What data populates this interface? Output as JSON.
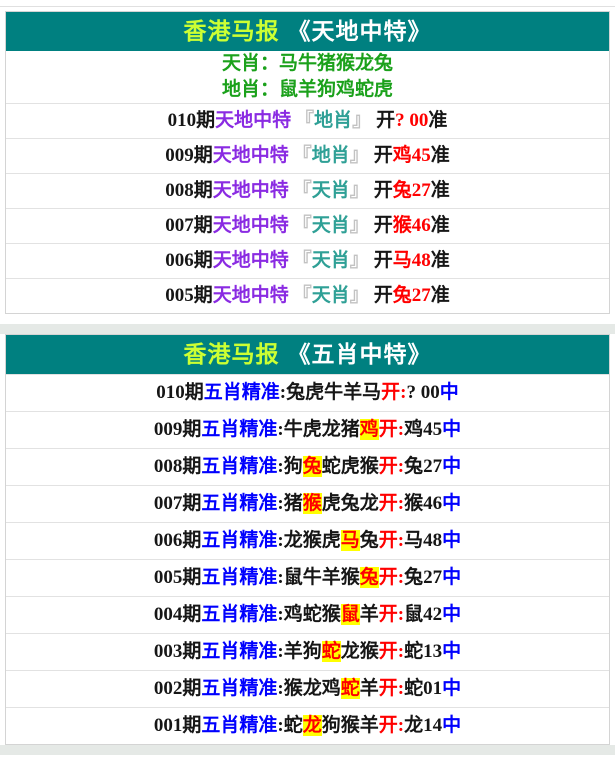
{
  "colors": {
    "header_bg": "#008080",
    "title_accent": "#ccff33",
    "title_rest": "#ffffff",
    "info_green": "#1ba11b",
    "ink": "#161616",
    "purple": "#8a2be2",
    "bracket_gray": "#c2c2c2",
    "teal_label": "#2fa096",
    "red": "#ff0000",
    "blue": "#0000fe",
    "highlight_bg": "#ffff00"
  },
  "section1": {
    "title_brand": "香港马报",
    "title_book": "《天地中特》",
    "info_lines": [
      "天肖：马牛猪猴龙兔",
      "地肖：鼠羊狗鸡蛇虎"
    ],
    "label": "天地中特",
    "bracket_open": "『",
    "bracket_close": "』",
    "open_word": "开",
    "tail_word": "准",
    "rows": [
      {
        "period": "010期",
        "category": "地肖",
        "result": "? 00"
      },
      {
        "period": "009期",
        "category": "地肖",
        "result": "鸡45"
      },
      {
        "period": "008期",
        "category": "天肖",
        "result": "兔27"
      },
      {
        "period": "007期",
        "category": "天肖",
        "result": "猴46"
      },
      {
        "period": "006期",
        "category": "天肖",
        "result": "马48"
      },
      {
        "period": "005期",
        "category": "天肖",
        "result": "兔27"
      }
    ]
  },
  "section2": {
    "title_brand": "香港马报",
    "title_book": "《五肖中特》",
    "label": "五肖精准",
    "colon": ":",
    "open_word": "开:",
    "win_word": "中",
    "rows": [
      {
        "period": "010期",
        "before": "兔虎牛羊马",
        "hit": "",
        "after": "",
        "result": "? 00"
      },
      {
        "period": "009期",
        "before": "牛虎龙猪",
        "hit": "鸡",
        "after": "",
        "result": "鸡45"
      },
      {
        "period": "008期",
        "before": "狗",
        "hit": "兔",
        "after": "蛇虎猴",
        "result": "兔27"
      },
      {
        "period": "007期",
        "before": "猪",
        "hit": "猴",
        "after": "虎兔龙",
        "result": "猴46"
      },
      {
        "period": "006期",
        "before": "龙猴虎",
        "hit": "马",
        "after": "兔",
        "result": "马48"
      },
      {
        "period": "005期",
        "before": "鼠牛羊猴",
        "hit": "兔",
        "after": "",
        "result": "兔27"
      },
      {
        "period": "004期",
        "before": "鸡蛇猴",
        "hit": "鼠",
        "after": "羊",
        "result": "鼠42"
      },
      {
        "period": "003期",
        "before": "羊狗",
        "hit": "蛇",
        "after": "龙猴",
        "result": "蛇13"
      },
      {
        "period": "002期",
        "before": "猴龙鸡",
        "hit": "蛇",
        "after": "羊",
        "result": "蛇01"
      },
      {
        "period": "001期",
        "before": "蛇",
        "hit": "龙",
        "after": "狗猴羊",
        "result": "龙14"
      }
    ]
  }
}
